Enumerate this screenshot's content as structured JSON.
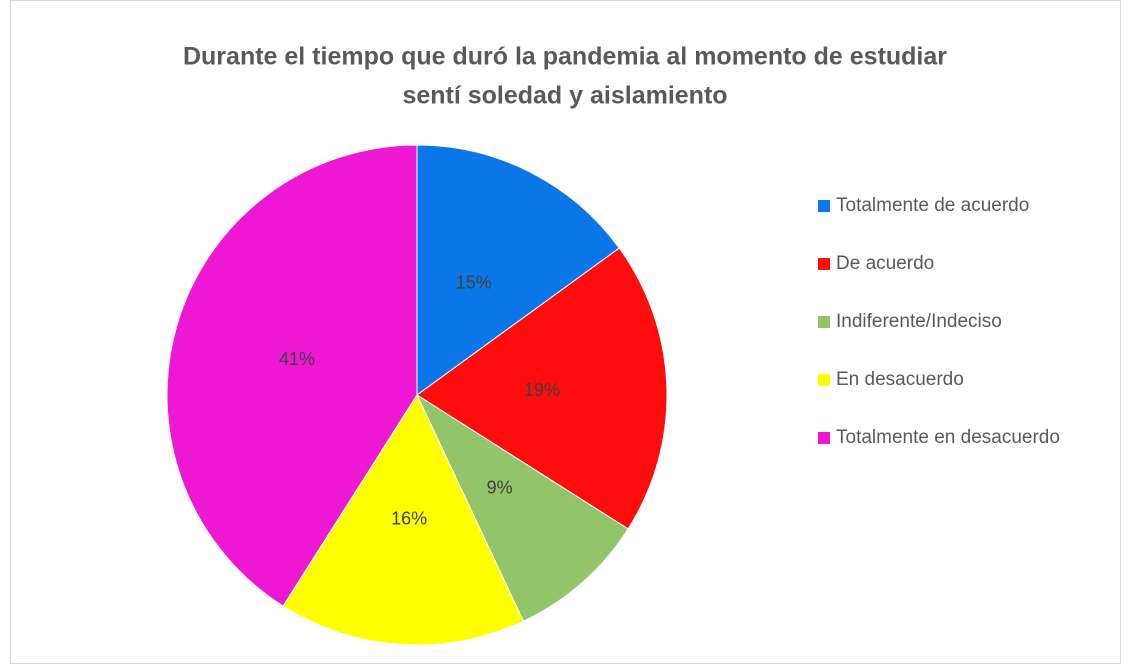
{
  "chart_data": {
    "type": "pie",
    "title": [
      "Durante el tiempo que duró la pandemia al momento de estudiar",
      "sentí soledad y aislamiento"
    ],
    "categories": [
      "Totalmente de acuerdo",
      "De acuerdo",
      "Indiferente/Indeciso",
      "En desacuerdo",
      "Totalmente en desacuerdo"
    ],
    "values": [
      15,
      19,
      9,
      16,
      41
    ],
    "value_labels": [
      "15%",
      "19%",
      "9%",
      "16%",
      "41%"
    ],
    "colors": [
      "#0b76e8",
      "#ff0d0d",
      "#92c46a",
      "#ffff00",
      "#ee18d4"
    ],
    "legend": "right"
  }
}
